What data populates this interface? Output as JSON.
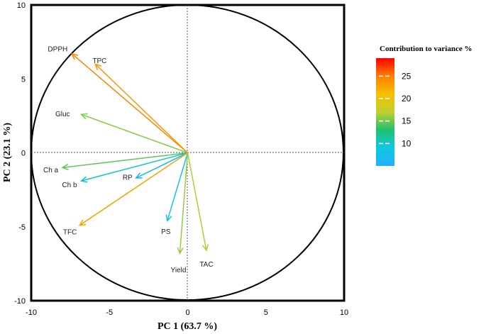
{
  "chart_data": {
    "type": "biplot",
    "xlabel": "PC 1 (63.7 %)",
    "ylabel": "PC 2 (23.1 %)",
    "xlim": [
      -10,
      10
    ],
    "ylim": [
      -10,
      10
    ],
    "xticks": [
      "-10",
      "-5",
      "0",
      "5",
      "10"
    ],
    "yticks": [
      "10",
      "5",
      "0",
      "-5",
      "-10"
    ],
    "unit_circle_radius": 10,
    "vectors": [
      {
        "name": "DPPH",
        "x": -7.4,
        "y": 6.7,
        "contribution": 24.5
      },
      {
        "name": "TPC",
        "x": -5.9,
        "y": 6.0,
        "contribution": 23.5
      },
      {
        "name": "Gluc",
        "x": -6.8,
        "y": 2.6,
        "contribution": 15.5
      },
      {
        "name": "Ch a",
        "x": -8.0,
        "y": -1.0,
        "contribution": 14.5
      },
      {
        "name": "Ch b",
        "x": -6.8,
        "y": -1.9,
        "contribution": 10.0
      },
      {
        "name": "RP",
        "x": -3.3,
        "y": -1.7,
        "contribution": 6.0
      },
      {
        "name": "TFC",
        "x": -6.9,
        "y": -4.9,
        "contribution": 23.0
      },
      {
        "name": "PS",
        "x": -1.3,
        "y": -4.6,
        "contribution": 8.0
      },
      {
        "name": "Yield",
        "x": -0.5,
        "y": -6.8,
        "contribution": 16.0
      },
      {
        "name": "TAC",
        "x": 1.2,
        "y": -6.6,
        "contribution": 16.5
      }
    ],
    "legend": {
      "title": "Contribution to variance %",
      "ticks": [
        "25",
        "20",
        "15",
        "10"
      ],
      "tick_values": [
        25,
        20,
        15,
        10
      ],
      "range": [
        5,
        29
      ],
      "colors": [
        "#ff0000",
        "#ff7f00",
        "#f5c000",
        "#c0d030",
        "#20c070",
        "#10c8e0",
        "#20b0ff"
      ],
      "placement": "right"
    }
  }
}
